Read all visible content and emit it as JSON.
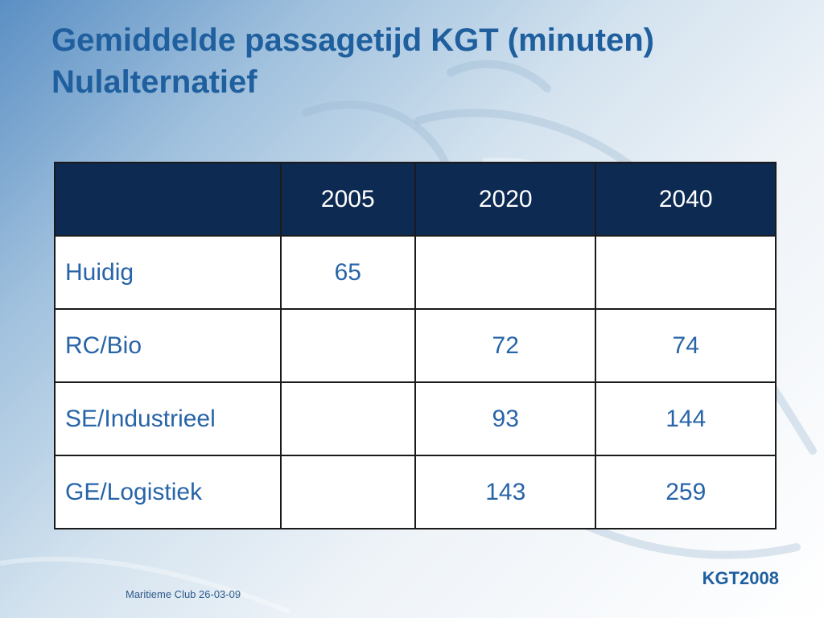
{
  "slide": {
    "title_line1": "Gemiddelde passagetijd KGT (minuten)",
    "title_line2": "Nulalternatief"
  },
  "table": {
    "headers": [
      "",
      "2005",
      "2020",
      "2040"
    ],
    "rows": [
      {
        "label": "Huidig",
        "cells": [
          "65",
          "",
          ""
        ]
      },
      {
        "label": "RC/Bio",
        "cells": [
          "",
          "72",
          "74"
        ]
      },
      {
        "label": "SE/Industrieel",
        "cells": [
          "",
          "93",
          "144"
        ]
      },
      {
        "label": "GE/Logistiek",
        "cells": [
          "",
          "143",
          "259"
        ]
      }
    ]
  },
  "footer": {
    "left": "Maritieme Club 26-03-09",
    "right": "KGT2008"
  },
  "colors": {
    "title": "#1f5f9e",
    "header_bg": "#0d2a52",
    "cell_text": "#2864a8"
  }
}
